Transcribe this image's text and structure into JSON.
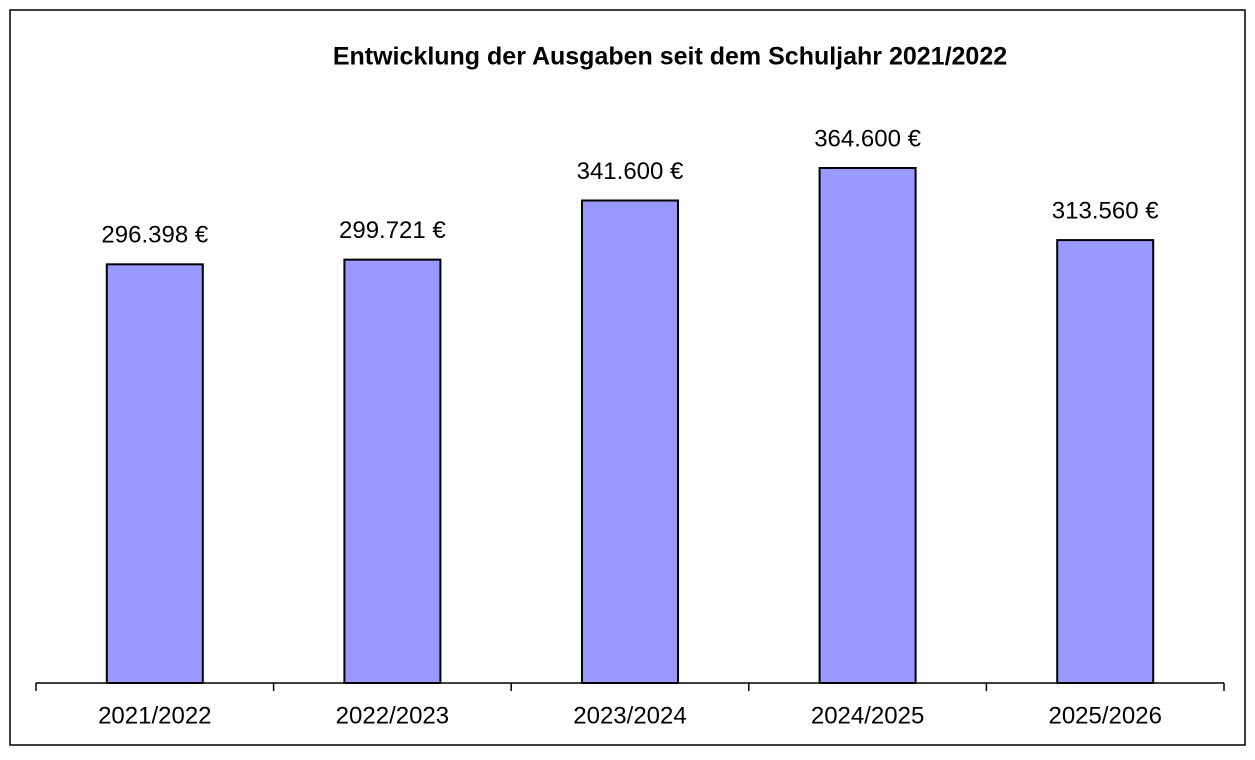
{
  "chart_data": {
    "type": "bar",
    "title": "Entwicklung der Ausgaben seit dem Schuljahr 2021/2022",
    "categories": [
      "2021/2022",
      "2022/2023",
      "2023/2024",
      "2024/2025",
      "2025/2026"
    ],
    "values": [
      296398,
      299721,
      341600,
      364600,
      313560
    ],
    "value_labels": [
      "296.398 €",
      "299.721 €",
      "341.600 €",
      "364.600 €",
      "313.560 €"
    ],
    "color": "#9999ff",
    "ylim": [
      0,
      400000
    ]
  }
}
